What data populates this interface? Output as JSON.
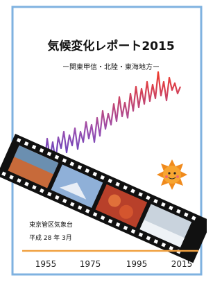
{
  "cover": {
    "title": "気候変化レポート2015",
    "subtitle": "ー関東甲信・北陸・東海地方ー",
    "publisher": "東京管区気象台",
    "date": "平成 28 年 3月",
    "axis_labels": [
      "1955",
      "1975",
      "1995",
      "2015"
    ]
  }
}
